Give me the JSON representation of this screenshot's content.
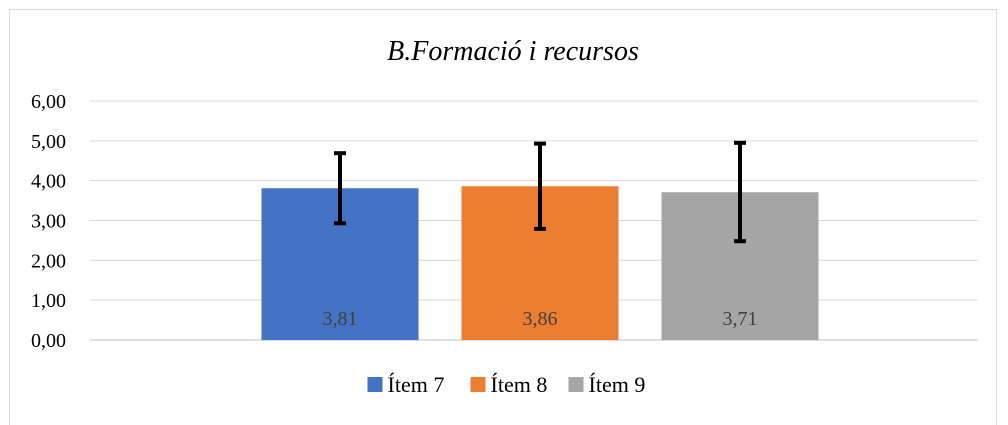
{
  "chart_data": {
    "type": "bar",
    "title": "B.Formació i recursos",
    "xlabel": "",
    "ylabel": "",
    "categories": [
      "Ítem 7",
      "Ítem 8",
      "Ítem 9"
    ],
    "values": [
      3.81,
      3.86,
      3.71
    ],
    "value_labels": [
      "3,81",
      "3,86",
      "3,71"
    ],
    "error_bars": [
      {
        "low": 2.93,
        "high": 4.69
      },
      {
        "low": 2.79,
        "high": 4.93
      },
      {
        "low": 2.48,
        "high": 4.95
      }
    ],
    "colors": [
      "#4472c4",
      "#ed7d31",
      "#a5a5a5"
    ],
    "ylim": [
      0,
      6
    ],
    "y_ticks": [
      0,
      1,
      2,
      3,
      4,
      5,
      6
    ],
    "y_tick_labels": [
      "0,00",
      "1,00",
      "2,00",
      "3,00",
      "4,00",
      "5,00",
      "6,00"
    ],
    "grid": true,
    "legend": {
      "position": "bottom",
      "entries": [
        "Ítem 7",
        "Ítem 8",
        "Ítem 9"
      ]
    }
  }
}
